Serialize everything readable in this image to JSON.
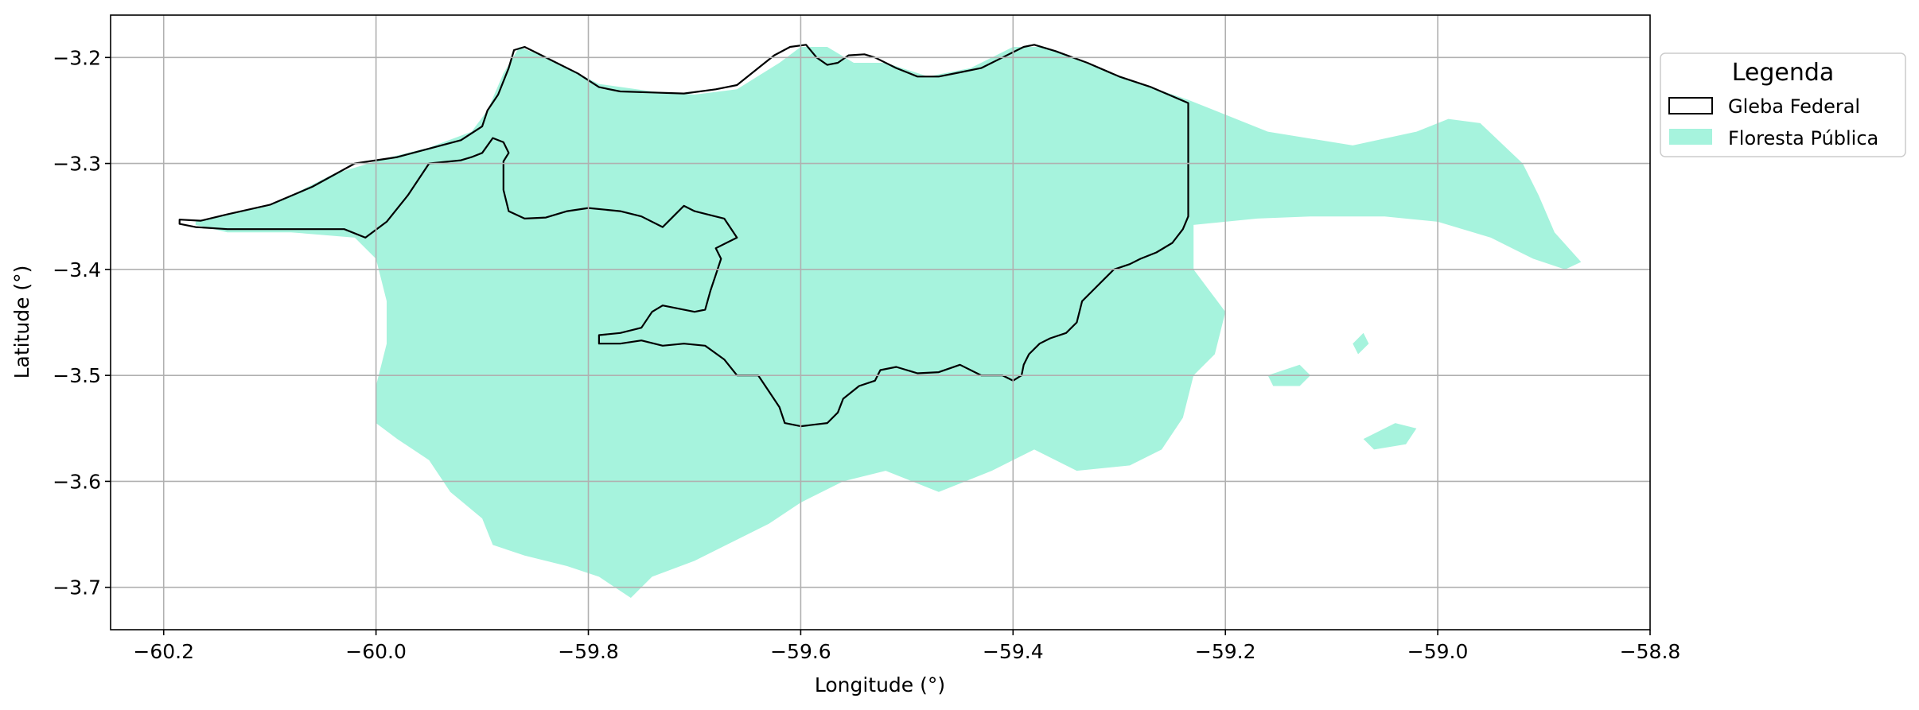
{
  "chart_data": {
    "type": "map",
    "xlabel": "Longitude (°)",
    "ylabel": "Latitude (°)",
    "xlim": [
      -60.25,
      -58.8
    ],
    "ylim": [
      -3.74,
      -3.16
    ],
    "x_ticks": [
      -60.2,
      -60.0,
      -59.8,
      -59.6,
      -59.4,
      -59.2,
      -59.0,
      -58.8
    ],
    "x_tick_labels": [
      "−60.2",
      "−60.0",
      "−59.8",
      "−59.6",
      "−59.4",
      "−59.2",
      "−59.0",
      "−58.8"
    ],
    "y_ticks": [
      -3.2,
      -3.3,
      -3.4,
      -3.5,
      -3.6,
      -3.7
    ],
    "y_tick_labels": [
      "−3.2",
      "−3.3",
      "−3.4",
      "−3.5",
      "−3.6",
      "−3.7"
    ],
    "grid": true,
    "legend": {
      "title": "Legenda",
      "placement": "outside-right-top",
      "entries": [
        {
          "label": "Gleba Federal",
          "style": "outline",
          "edge_color": "#000000",
          "fill": "none"
        },
        {
          "label": "Floresta Pública",
          "style": "fill",
          "fill": "#a6f3dd"
        }
      ]
    },
    "layers": [
      {
        "name": "Floresta Pública",
        "fill": "#a6f3dd",
        "polygons": [
          [
            [
              -60.17,
              -3.355
            ],
            [
              -60.1,
              -3.34
            ],
            [
              -60.04,
              -3.31
            ],
            [
              -59.99,
              -3.295
            ],
            [
              -59.95,
              -3.285
            ],
            [
              -59.91,
              -3.27
            ],
            [
              -59.895,
              -3.25
            ],
            [
              -59.88,
              -3.215
            ],
            [
              -59.865,
              -3.19
            ],
            [
              -59.84,
              -3.2
            ],
            [
              -59.79,
              -3.225
            ],
            [
              -59.74,
              -3.232
            ],
            [
              -59.7,
              -3.235
            ],
            [
              -59.66,
              -3.23
            ],
            [
              -59.62,
              -3.205
            ],
            [
              -59.6,
              -3.19
            ],
            [
              -59.575,
              -3.19
            ],
            [
              -59.55,
              -3.205
            ],
            [
              -59.52,
              -3.205
            ],
            [
              -59.48,
              -3.218
            ],
            [
              -59.44,
              -3.21
            ],
            [
              -59.4,
              -3.19
            ],
            [
              -59.37,
              -3.19
            ],
            [
              -59.32,
              -3.21
            ],
            [
              -59.27,
              -3.228
            ],
            [
              -59.235,
              -3.24
            ],
            [
              -59.16,
              -3.27
            ],
            [
              -59.08,
              -3.283
            ],
            [
              -59.02,
              -3.27
            ],
            [
              -58.99,
              -3.258
            ],
            [
              -58.96,
              -3.262
            ],
            [
              -58.92,
              -3.3
            ],
            [
              -58.905,
              -3.33
            ],
            [
              -58.89,
              -3.365
            ],
            [
              -58.865,
              -3.393
            ],
            [
              -58.88,
              -3.4
            ],
            [
              -58.91,
              -3.39
            ],
            [
              -58.95,
              -3.37
            ],
            [
              -59.0,
              -3.355
            ],
            [
              -59.05,
              -3.35
            ],
            [
              -59.12,
              -3.35
            ],
            [
              -59.17,
              -3.352
            ],
            [
              -59.23,
              -3.358
            ],
            [
              -59.23,
              -3.4
            ],
            [
              -59.2,
              -3.44
            ],
            [
              -59.21,
              -3.48
            ],
            [
              -59.23,
              -3.5
            ],
            [
              -59.24,
              -3.54
            ],
            [
              -59.26,
              -3.57
            ],
            [
              -59.29,
              -3.585
            ],
            [
              -59.34,
              -3.59
            ],
            [
              -59.38,
              -3.57
            ],
            [
              -59.42,
              -3.59
            ],
            [
              -59.47,
              -3.61
            ],
            [
              -59.52,
              -3.59
            ],
            [
              -59.56,
              -3.6
            ],
            [
              -59.6,
              -3.62
            ],
            [
              -59.63,
              -3.64
            ],
            [
              -59.67,
              -3.66
            ],
            [
              -59.7,
              -3.675
            ],
            [
              -59.74,
              -3.69
            ],
            [
              -59.76,
              -3.71
            ],
            [
              -59.79,
              -3.69
            ],
            [
              -59.82,
              -3.68
            ],
            [
              -59.86,
              -3.67
            ],
            [
              -59.89,
              -3.66
            ],
            [
              -59.9,
              -3.635
            ],
            [
              -59.93,
              -3.61
            ],
            [
              -59.95,
              -3.58
            ],
            [
              -59.98,
              -3.56
            ],
            [
              -60.0,
              -3.545
            ],
            [
              -60.0,
              -3.51
            ],
            [
              -59.99,
              -3.47
            ],
            [
              -59.99,
              -3.43
            ],
            [
              -60.0,
              -3.39
            ],
            [
              -60.02,
              -3.37
            ],
            [
              -60.08,
              -3.365
            ],
            [
              -60.14,
              -3.365
            ],
            [
              -60.17,
              -3.358
            ]
          ],
          [
            [
              -59.37,
              -3.53
            ],
            [
              -59.33,
              -3.52
            ],
            [
              -59.29,
              -3.535
            ],
            [
              -59.27,
              -3.555
            ],
            [
              -59.29,
              -3.575
            ],
            [
              -59.33,
              -3.585
            ],
            [
              -59.36,
              -3.57
            ]
          ],
          [
            [
              -59.16,
              -3.5
            ],
            [
              -59.13,
              -3.49
            ],
            [
              -59.12,
              -3.5
            ],
            [
              -59.13,
              -3.51
            ],
            [
              -59.155,
              -3.51
            ]
          ],
          [
            [
              -59.07,
              -3.56
            ],
            [
              -59.04,
              -3.545
            ],
            [
              -59.02,
              -3.55
            ],
            [
              -59.03,
              -3.565
            ],
            [
              -59.06,
              -3.57
            ]
          ],
          [
            [
              -59.08,
              -3.47
            ],
            [
              -59.07,
              -3.46
            ],
            [
              -59.065,
              -3.47
            ],
            [
              -59.075,
              -3.48
            ]
          ]
        ]
      },
      {
        "name": "Gleba Federal",
        "edge_color": "#000000",
        "polygons": [
          [
            [
              -60.185,
              -3.353
            ],
            [
              -60.165,
              -3.354
            ],
            [
              -60.14,
              -3.348
            ],
            [
              -60.1,
              -3.339
            ],
            [
              -60.06,
              -3.322
            ],
            [
              -60.02,
              -3.3
            ],
            [
              -59.98,
              -3.294
            ],
            [
              -59.95,
              -3.286
            ],
            [
              -59.92,
              -3.278
            ],
            [
              -59.9,
              -3.265
            ],
            [
              -59.895,
              -3.25
            ],
            [
              -59.885,
              -3.235
            ],
            [
              -59.875,
              -3.21
            ],
            [
              -59.87,
              -3.193
            ],
            [
              -59.86,
              -3.19
            ],
            [
              -59.85,
              -3.195
            ],
            [
              -59.83,
              -3.205
            ],
            [
              -59.81,
              -3.215
            ],
            [
              -59.79,
              -3.228
            ],
            [
              -59.77,
              -3.232
            ],
            [
              -59.74,
              -3.233
            ],
            [
              -59.71,
              -3.234
            ],
            [
              -59.68,
              -3.23
            ],
            [
              -59.66,
              -3.226
            ],
            [
              -59.64,
              -3.21
            ],
            [
              -59.625,
              -3.198
            ],
            [
              -59.61,
              -3.19
            ],
            [
              -59.595,
              -3.188
            ],
            [
              -59.585,
              -3.2
            ],
            [
              -59.575,
              -3.207
            ],
            [
              -59.565,
              -3.205
            ],
            [
              -59.555,
              -3.198
            ],
            [
              -59.54,
              -3.197
            ],
            [
              -59.53,
              -3.2
            ],
            [
              -59.51,
              -3.21
            ],
            [
              -59.49,
              -3.218
            ],
            [
              -59.47,
              -3.218
            ],
            [
              -59.45,
              -3.214
            ],
            [
              -59.43,
              -3.21
            ],
            [
              -59.41,
              -3.2
            ],
            [
              -59.39,
              -3.19
            ],
            [
              -59.38,
              -3.188
            ],
            [
              -59.36,
              -3.194
            ],
            [
              -59.33,
              -3.205
            ],
            [
              -59.3,
              -3.218
            ],
            [
              -59.27,
              -3.228
            ],
            [
              -59.235,
              -3.243
            ],
            [
              -59.235,
              -3.35
            ],
            [
              -59.24,
              -3.362
            ],
            [
              -59.25,
              -3.375
            ],
            [
              -59.265,
              -3.384
            ],
            [
              -59.28,
              -3.39
            ],
            [
              -59.29,
              -3.395
            ],
            [
              -59.305,
              -3.4
            ],
            [
              -59.315,
              -3.41
            ],
            [
              -59.325,
              -3.42
            ],
            [
              -59.335,
              -3.43
            ],
            [
              -59.34,
              -3.45
            ],
            [
              -59.35,
              -3.46
            ],
            [
              -59.365,
              -3.465
            ],
            [
              -59.375,
              -3.47
            ],
            [
              -59.385,
              -3.48
            ],
            [
              -59.39,
              -3.49
            ],
            [
              -59.392,
              -3.5
            ],
            [
              -59.4,
              -3.505
            ],
            [
              -59.41,
              -3.5
            ],
            [
              -59.43,
              -3.5
            ],
            [
              -59.45,
              -3.49
            ],
            [
              -59.47,
              -3.497
            ],
            [
              -59.49,
              -3.498
            ],
            [
              -59.51,
              -3.492
            ],
            [
              -59.525,
              -3.495
            ],
            [
              -59.53,
              -3.505
            ],
            [
              -59.545,
              -3.51
            ],
            [
              -59.56,
              -3.522
            ],
            [
              -59.565,
              -3.535
            ],
            [
              -59.575,
              -3.545
            ],
            [
              -59.6,
              -3.548
            ],
            [
              -59.615,
              -3.545
            ],
            [
              -59.62,
              -3.53
            ],
            [
              -59.63,
              -3.515
            ],
            [
              -59.64,
              -3.5
            ],
            [
              -59.66,
              -3.5
            ],
            [
              -59.672,
              -3.485
            ],
            [
              -59.69,
              -3.472
            ],
            [
              -59.71,
              -3.47
            ],
            [
              -59.73,
              -3.472
            ],
            [
              -59.75,
              -3.467
            ],
            [
              -59.77,
              -3.47
            ],
            [
              -59.79,
              -3.47
            ],
            [
              -59.79,
              -3.462
            ],
            [
              -59.77,
              -3.46
            ],
            [
              -59.75,
              -3.455
            ],
            [
              -59.74,
              -3.44
            ],
            [
              -59.73,
              -3.434
            ],
            [
              -59.7,
              -3.44
            ],
            [
              -59.69,
              -3.438
            ],
            [
              -59.685,
              -3.42
            ],
            [
              -59.68,
              -3.405
            ],
            [
              -59.675,
              -3.39
            ],
            [
              -59.68,
              -3.38
            ],
            [
              -59.67,
              -3.375
            ],
            [
              -59.66,
              -3.37
            ],
            [
              -59.672,
              -3.352
            ],
            [
              -59.7,
              -3.345
            ],
            [
              -59.71,
              -3.34
            ],
            [
              -59.72,
              -3.35
            ],
            [
              -59.73,
              -3.36
            ],
            [
              -59.75,
              -3.35
            ],
            [
              -59.77,
              -3.345
            ],
            [
              -59.8,
              -3.342
            ],
            [
              -59.82,
              -3.345
            ],
            [
              -59.84,
              -3.351
            ],
            [
              -59.86,
              -3.352
            ],
            [
              -59.875,
              -3.345
            ],
            [
              -59.88,
              -3.325
            ],
            [
              -59.88,
              -3.298
            ],
            [
              -59.875,
              -3.29
            ],
            [
              -59.88,
              -3.28
            ],
            [
              -59.89,
              -3.276
            ],
            [
              -59.9,
              -3.29
            ],
            [
              -59.91,
              -3.294
            ],
            [
              -59.92,
              -3.297
            ],
            [
              -59.95,
              -3.3
            ],
            [
              -59.97,
              -3.33
            ],
            [
              -59.99,
              -3.355
            ],
            [
              -60.01,
              -3.37
            ],
            [
              -60.03,
              -3.362
            ],
            [
              -60.07,
              -3.362
            ],
            [
              -60.1,
              -3.362
            ],
            [
              -60.14,
              -3.362
            ],
            [
              -60.17,
              -3.36
            ],
            [
              -60.185,
              -3.357
            ]
          ]
        ]
      }
    ]
  }
}
